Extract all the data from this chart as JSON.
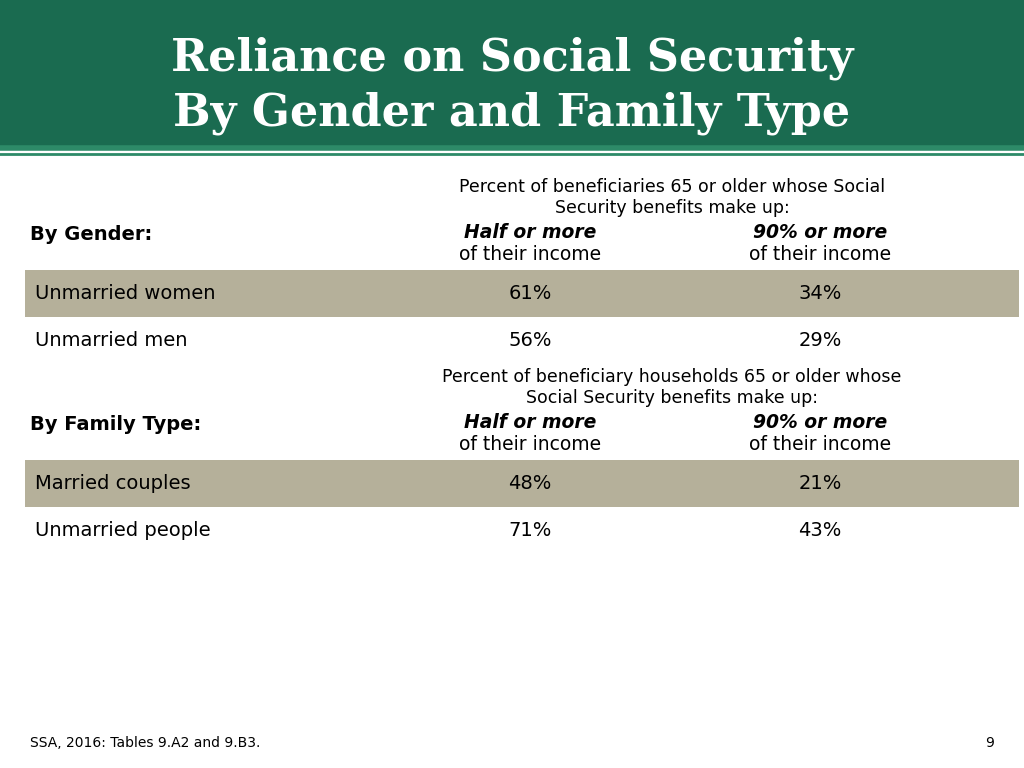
{
  "title_line1": "Reliance on Social Security",
  "title_line2": "By Gender and Family Type",
  "title_bg_color": "#1a6b50",
  "title_text_color": "#ffffff",
  "divider_color": "#2d8a68",
  "bg_color": "#ffffff",
  "shaded_row_color": "#b5b09a",
  "section1_note": "Percent of beneficiaries 65 or older whose Social\nSecurity benefits make up:",
  "section2_note": "Percent of beneficiary households 65 or older whose\nSocial Security benefits make up:",
  "col1_header_bold": "Half or more",
  "col1_header_regular": "of their income",
  "col2_header_bold": "90% or more",
  "col2_header_regular": "of their income",
  "gender_label": "By Gender:",
  "family_label": "By Family Type:",
  "gender_rows": [
    {
      "label": "Unmarried women",
      "col1": "61%",
      "col2": "34%",
      "shaded": true
    },
    {
      "label": "Unmarried men",
      "col1": "56%",
      "col2": "29%",
      "shaded": false
    }
  ],
  "family_rows": [
    {
      "label": "Married couples",
      "col1": "48%",
      "col2": "21%",
      "shaded": true
    },
    {
      "label": "Unmarried people",
      "col1": "71%",
      "col2": "43%",
      "shaded": false
    }
  ],
  "footnote": "SSA, 2016: Tables 9.A2 and 9.B3.",
  "page_number": "9"
}
